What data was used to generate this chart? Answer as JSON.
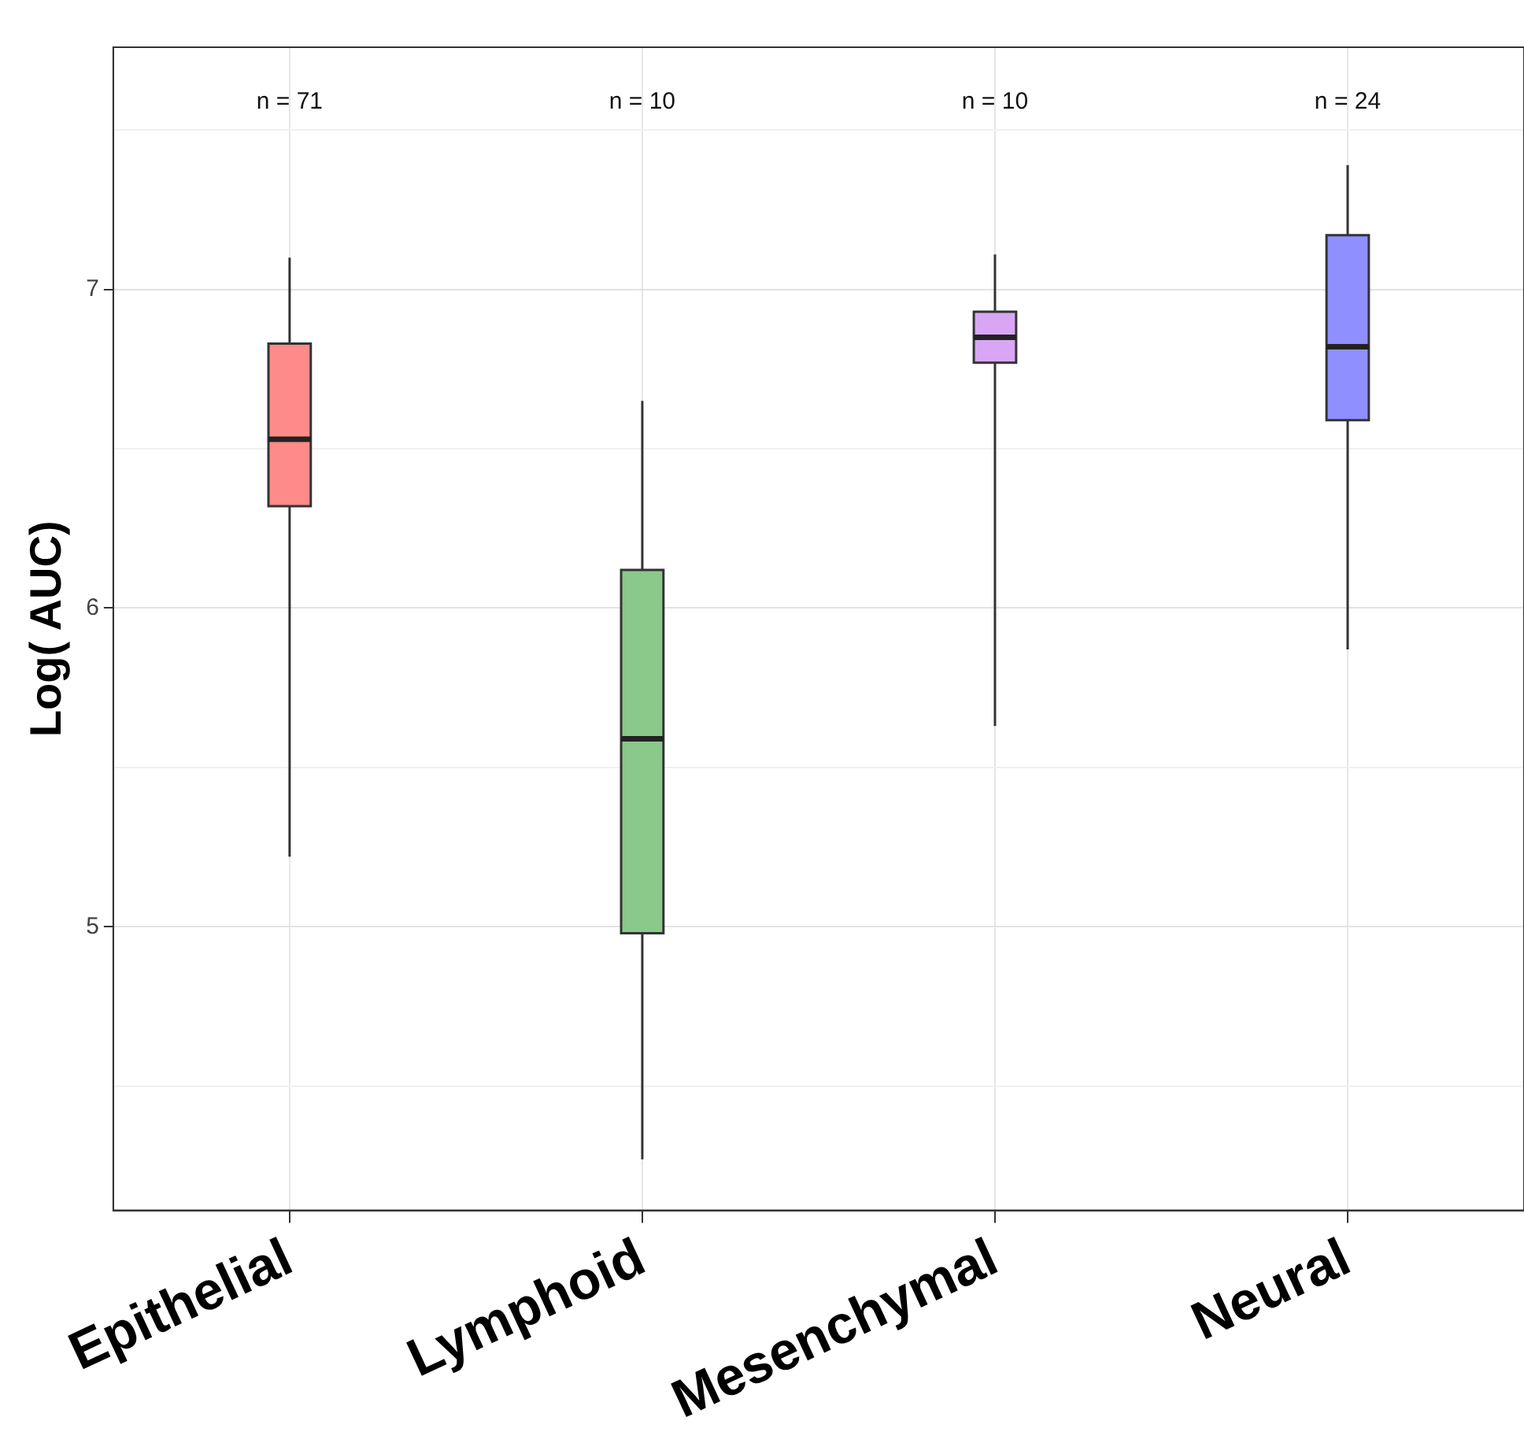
{
  "chart_data": {
    "type": "box",
    "ylabel": "Log( AUC)",
    "categories": [
      "Epithelial",
      "Lymphoid",
      "Mesenchymal",
      "Neural"
    ],
    "boxes": [
      {
        "low": 5.22,
        "q1": 6.32,
        "median": 6.53,
        "q3": 6.83,
        "high": 7.1
      },
      {
        "low": 4.27,
        "q1": 4.98,
        "median": 5.59,
        "q3": 6.12,
        "high": 6.65
      },
      {
        "low": 5.63,
        "q1": 6.77,
        "median": 6.85,
        "q3": 6.93,
        "high": 7.11
      },
      {
        "low": 5.87,
        "q1": 6.59,
        "median": 6.82,
        "q3": 7.17,
        "high": 7.39
      }
    ],
    "colors": [
      "#ff8a8a",
      "#8ac98a",
      "#d9a6f5",
      "#8f8fff"
    ],
    "ylim": [
      4.11,
      7.76
    ],
    "yticks": [
      {
        "value": 4.5,
        "label": null
      },
      5,
      {
        "value": 5.5,
        "label": null
      },
      6,
      {
        "value": 6.5,
        "label": null
      },
      7,
      {
        "value": 7.5,
        "label": null
      }
    ],
    "grid": true,
    "annotations": [
      "n = 71",
      "n = 10",
      "n = 10",
      "n = 24"
    ]
  }
}
